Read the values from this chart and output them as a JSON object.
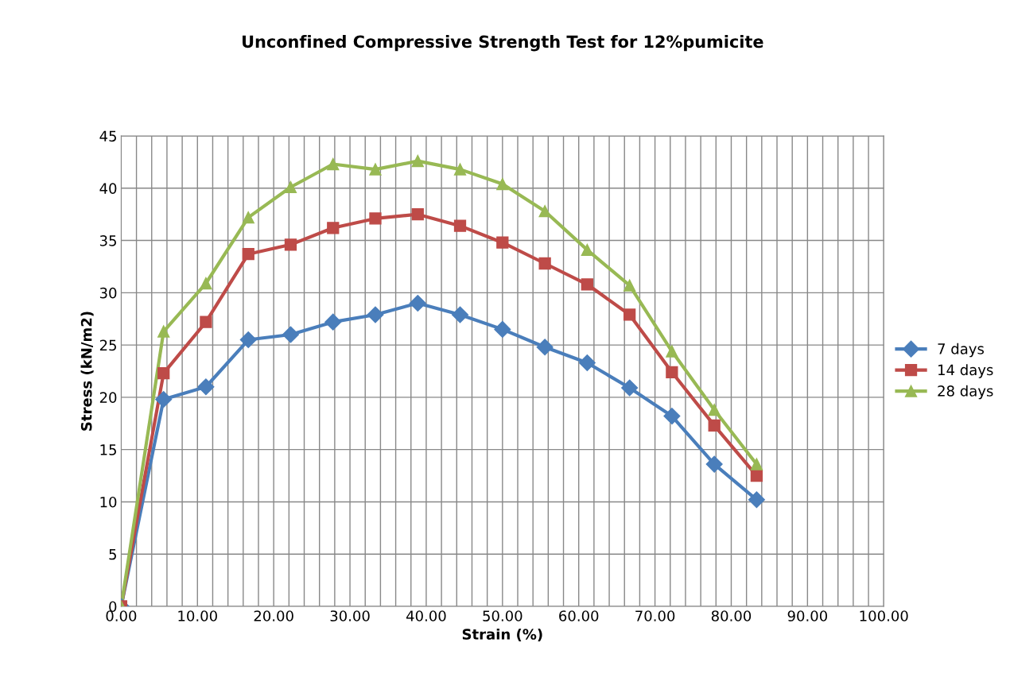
{
  "chart_data": {
    "type": "line",
    "title": "Unconfined Compressive Strength Test for 12%pumicite",
    "xlabel": "Strain (%)",
    "ylabel": "Stress (kN/m2)",
    "x": [
      0,
      5.56,
      11.11,
      16.67,
      22.22,
      27.78,
      33.33,
      38.89,
      44.44,
      50,
      55.56,
      61.11,
      66.67,
      72.22,
      77.78,
      83.33
    ],
    "series": [
      {
        "name": "7 days",
        "color": "#4a7ebb",
        "marker": "diamond",
        "values": [
          0,
          19.8,
          21.0,
          25.5,
          26.0,
          27.2,
          27.9,
          29.0,
          27.9,
          26.5,
          24.8,
          23.3,
          20.9,
          18.2,
          13.6,
          10.2
        ]
      },
      {
        "name": "14 days",
        "color": "#be4b48",
        "marker": "square",
        "values": [
          0,
          22.3,
          27.2,
          33.7,
          34.6,
          36.2,
          37.1,
          37.5,
          36.4,
          34.8,
          32.8,
          30.8,
          27.9,
          22.4,
          17.3,
          12.5
        ]
      },
      {
        "name": "28 days",
        "color": "#98b954",
        "marker": "triangle",
        "values": [
          0,
          26.3,
          30.9,
          37.2,
          40.1,
          42.3,
          41.8,
          42.6,
          41.8,
          40.4,
          37.8,
          34.1,
          30.7,
          24.4,
          18.8,
          13.6
        ]
      }
    ],
    "xlim": [
      0,
      100
    ],
    "xticks": [
      {
        "value": 0,
        "label": "0.00"
      },
      {
        "value": 2,
        "label": null
      },
      {
        "value": 4,
        "label": null
      },
      {
        "value": 6,
        "label": null
      },
      {
        "value": 8,
        "label": null
      },
      {
        "value": 10,
        "label": "10.00"
      },
      {
        "value": 12,
        "label": null
      },
      {
        "value": 14,
        "label": null
      },
      {
        "value": 16,
        "label": null
      },
      {
        "value": 18,
        "label": null
      },
      {
        "value": 20,
        "label": "20.00"
      },
      {
        "value": 22,
        "label": null
      },
      {
        "value": 24,
        "label": null
      },
      {
        "value": 26,
        "label": null
      },
      {
        "value": 28,
        "label": null
      },
      {
        "value": 30,
        "label": "30.00"
      },
      {
        "value": 32,
        "label": null
      },
      {
        "value": 34,
        "label": null
      },
      {
        "value": 36,
        "label": null
      },
      {
        "value": 38,
        "label": null
      },
      {
        "value": 40,
        "label": "40.00"
      },
      {
        "value": 42,
        "label": null
      },
      {
        "value": 44,
        "label": null
      },
      {
        "value": 46,
        "label": null
      },
      {
        "value": 48,
        "label": null
      },
      {
        "value": 50,
        "label": "50.00"
      },
      {
        "value": 52,
        "label": null
      },
      {
        "value": 54,
        "label": null
      },
      {
        "value": 56,
        "label": null
      },
      {
        "value": 58,
        "label": null
      },
      {
        "value": 60,
        "label": "60.00"
      },
      {
        "value": 62,
        "label": null
      },
      {
        "value": 64,
        "label": null
      },
      {
        "value": 66,
        "label": null
      },
      {
        "value": 68,
        "label": null
      },
      {
        "value": 70,
        "label": "70.00"
      },
      {
        "value": 72,
        "label": null
      },
      {
        "value": 74,
        "label": null
      },
      {
        "value": 76,
        "label": null
      },
      {
        "value": 78,
        "label": null
      },
      {
        "value": 80,
        "label": "80.00"
      },
      {
        "value": 82,
        "label": null
      },
      {
        "value": 84,
        "label": null
      },
      {
        "value": 86,
        "label": null
      },
      {
        "value": 88,
        "label": null
      },
      {
        "value": 90,
        "label": "90.00"
      },
      {
        "value": 92,
        "label": null
      },
      {
        "value": 94,
        "label": null
      },
      {
        "value": 96,
        "label": null
      },
      {
        "value": 98,
        "label": null
      },
      {
        "value": 100,
        "label": "100.00"
      }
    ],
    "ylim": [
      0,
      45
    ],
    "yticks": [
      0,
      5,
      10,
      15,
      20,
      25,
      30,
      35,
      40,
      45
    ],
    "grid": true,
    "legend": "right",
    "line_style": "solid"
  }
}
